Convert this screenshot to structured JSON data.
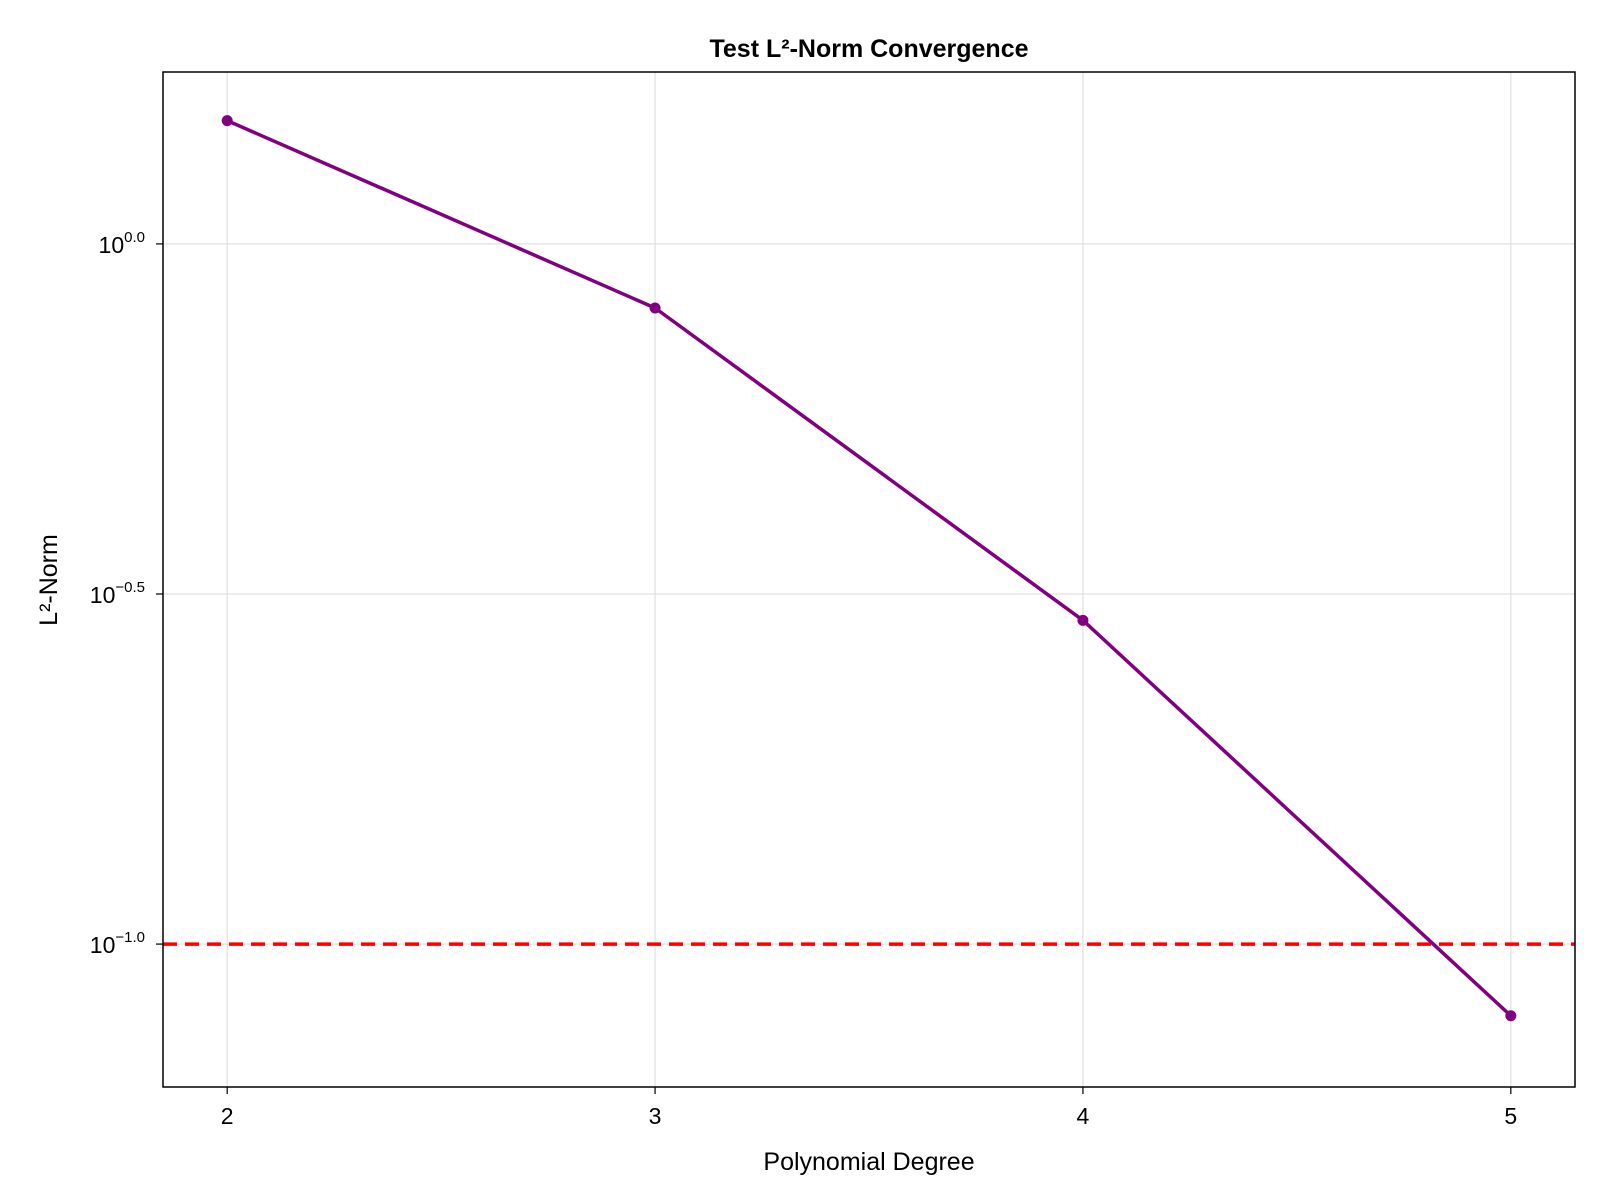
{
  "chart_data": {
    "type": "line",
    "title": "Test L²-Norm Convergence",
    "xlabel": "Polynomial Degree",
    "ylabel": "L²-Norm",
    "y_scale": "log10",
    "x": [
      2,
      3,
      4,
      5
    ],
    "series": [
      {
        "values": [
          1.5,
          0.81,
          0.29,
          0.079
        ],
        "color": "#800080",
        "markers": true
      }
    ],
    "reference_lines": [
      {
        "y": 0.1,
        "color": "#ff0000",
        "style": "dashed"
      }
    ],
    "xlim": [
      1.85,
      5.15
    ],
    "ylim": [
      0.0625,
      1.76
    ],
    "x_ticks": [
      {
        "value": 2,
        "label": "2"
      },
      {
        "value": 3,
        "label": "3"
      },
      {
        "value": 4,
        "label": "4"
      },
      {
        "value": 5,
        "label": "5"
      }
    ],
    "y_ticks": [
      {
        "value": 1.0,
        "base": "10",
        "exp": "0.0"
      },
      {
        "value": 0.316228,
        "base": "10",
        "exp": "−0.5"
      },
      {
        "value": 0.1,
        "base": "10",
        "exp": "−1.0"
      }
    ],
    "grid": true,
    "grid_color": "#e0e0e0",
    "legend": "none"
  }
}
